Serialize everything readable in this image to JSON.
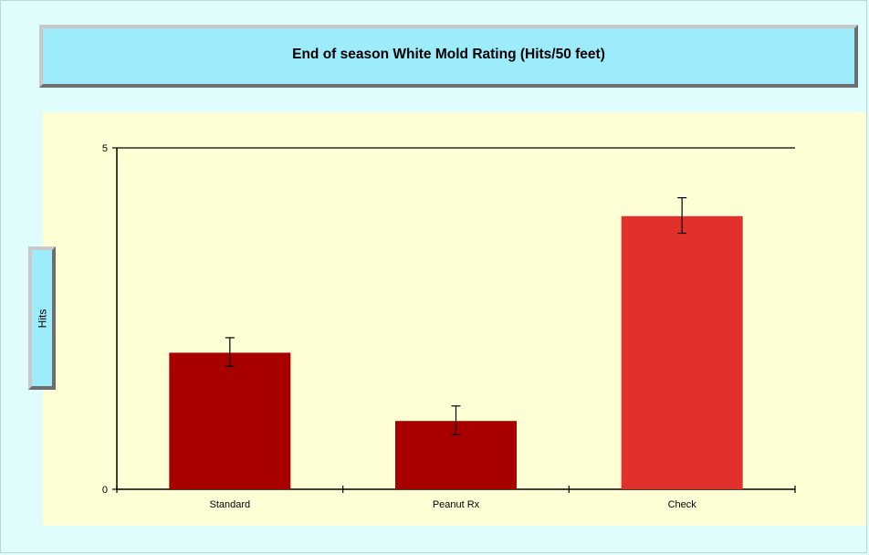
{
  "chart_data": {
    "type": "bar",
    "title": "End of season White Mold Rating (Hits/50 feet)",
    "xlabel": "",
    "ylabel": "Hits",
    "ylim": [
      0,
      5
    ],
    "yticks": [
      "0",
      "5"
    ],
    "categories": [
      "Standard",
      "Peanut Rx",
      "Check"
    ],
    "values": [
      2.0,
      1.0,
      4.0
    ],
    "error_low": [
      1.8,
      0.8,
      3.75
    ],
    "error_high": [
      2.22,
      1.22,
      4.27
    ],
    "bar_colors": [
      "#a80000",
      "#a80000",
      "#e2302c"
    ],
    "grid": false,
    "legend": "none"
  }
}
